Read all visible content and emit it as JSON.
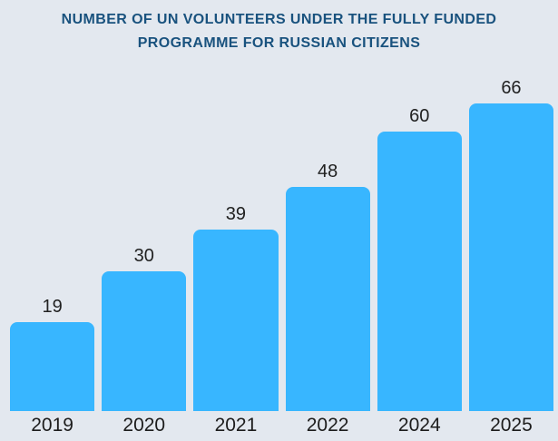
{
  "header": {
    "line1": "NUMBER OF UN VOLUNTEERS UNDER THE FULLY FUNDED",
    "line2": "PROGRAMME FOR RUSSIAN CITIZENS"
  },
  "colors": {
    "background": "#e3e8ef",
    "bar": "#38b6ff",
    "title_text": "#19527e",
    "label_text": "#212121"
  },
  "chart_data": {
    "type": "bar",
    "title": "NUMBER OF UN VOLUNTEERS UNDER THE FULLY FUNDED PROGRAMME FOR RUSSIAN CITIZENS",
    "categories": [
      "2019",
      "2020",
      "2021",
      "2022",
      "2024",
      "2025"
    ],
    "values": [
      19,
      30,
      39,
      48,
      60,
      66
    ],
    "xlabel": "",
    "ylabel": "",
    "ylim": [
      0,
      66
    ],
    "grid": false,
    "legend": false,
    "data_labels": true,
    "bar_color": "#38b6ff",
    "background_color": "#e3e8ef",
    "note": "x-axis skips year 2023"
  }
}
